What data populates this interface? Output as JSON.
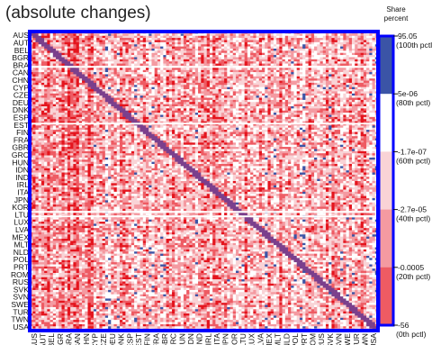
{
  "chart_data": {
    "type": "heatmap",
    "title": "(absolute changes)",
    "categories": [
      "AUS",
      "AUT",
      "BEL",
      "BGR",
      "BRA",
      "CAN",
      "CHN",
      "CYP",
      "CZE",
      "DEU",
      "DNK",
      "ESP",
      "EST",
      "FIN",
      "FRA",
      "GBR",
      "GRC",
      "HUN",
      "IDN",
      "IND",
      "IRL",
      "ITA",
      "JPN",
      "KOR",
      "LTU",
      "LUX",
      "LVA",
      "MEX",
      "MLT",
      "NLD",
      "POL",
      "PRT",
      "ROM",
      "RUS",
      "SVK",
      "SVN",
      "SWE",
      "TUR",
      "TWN",
      "USA"
    ],
    "colorbar": {
      "title_lines": [
        "Share",
        "percent"
      ],
      "levels": [
        {
          "value": "95.05",
          "pct": "(100th pctl)"
        },
        {
          "value": "5e-06",
          "pct": "(80th pctl)"
        },
        {
          "value": "-1.7e-07",
          "pct": "(60th pctl)"
        },
        {
          "value": "-2.7e-05",
          "pct": "(40th pctl)"
        },
        {
          "value": "-0.0005",
          "pct": "(20th pctl)"
        },
        {
          "value": "-56",
          "pct": "(0th pctl)"
        }
      ],
      "colors": [
        "#3b54a6",
        "#ffffff",
        "#f9d3d6",
        "#f49aa1",
        "#ee5b63",
        "#e4141d"
      ]
    },
    "grid": false,
    "legend_position": "right",
    "frame_color": "#0000ff"
  }
}
